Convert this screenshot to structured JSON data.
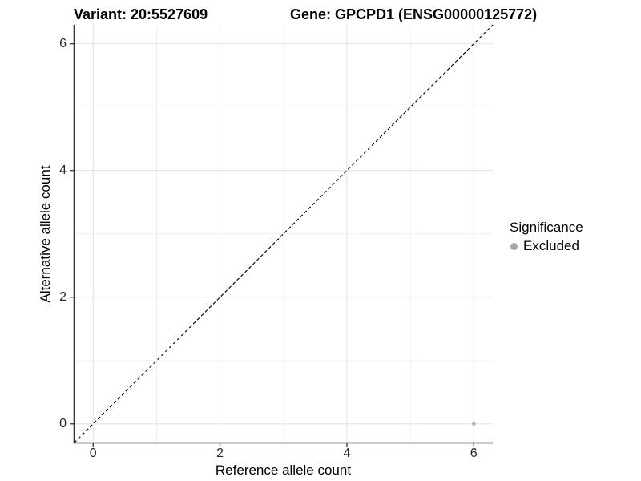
{
  "titles": {
    "variant": "Variant: 20:5527609",
    "gene": "Gene: GPCPD1 (ENSG00000125772)"
  },
  "legend": {
    "title": "Significance",
    "items": [
      {
        "label": "Excluded",
        "color": "#a6a6a6"
      }
    ]
  },
  "colors": {
    "point": "#b3b3b3",
    "legend_point": "#a6a6a6",
    "grid_major": "#e4e4e4",
    "grid_minor": "#efefef",
    "axis_line": "#333333",
    "tick_mark": "#333333",
    "identity_line": "#000000"
  },
  "chart_data": {
    "type": "scatter",
    "title_left": "Variant: 20:5527609",
    "title_right": "Gene: GPCPD1 (ENSG00000125772)",
    "xlabel": "Reference allele count",
    "ylabel": "Alternative allele count",
    "xlim": [
      -0.3,
      6.3
    ],
    "ylim": [
      -0.3,
      6.3
    ],
    "x_ticks": [
      0,
      2,
      4,
      6
    ],
    "y_ticks": [
      0,
      2,
      4,
      6
    ],
    "x_minor_gridlines": [
      1,
      3,
      5
    ],
    "y_minor_gridlines": [
      1,
      3,
      5
    ],
    "grid": true,
    "reference_line": {
      "type": "identity",
      "slope": 1,
      "intercept": 0,
      "style": "dashed",
      "color": "#000000"
    },
    "series": [
      {
        "name": "Excluded",
        "color": "#b3b3b3",
        "points": [
          {
            "x": 6,
            "y": 0
          }
        ]
      }
    ],
    "legend_title": "Significance",
    "legend_position": "right"
  }
}
